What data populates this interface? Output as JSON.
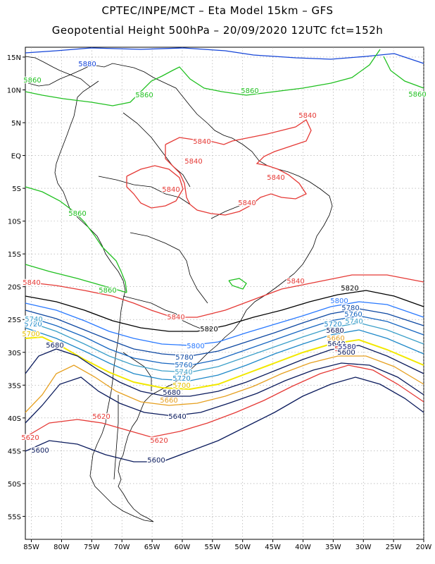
{
  "header": {
    "line1": "CPTEC/INPE/MCT –  Eta Model 15km – GFS",
    "line2": "Geopotential Height 500hPa – 20/09/2020 12UTC fct=152h"
  },
  "axes": {
    "lat_labels": [
      "15N",
      "10N",
      "5N",
      "EQ",
      "5S",
      "10S",
      "15S",
      "20S",
      "25S",
      "30S",
      "35S",
      "40S",
      "45S",
      "50S",
      "55S"
    ],
    "lat_values": [
      15,
      10,
      5,
      0,
      -5,
      -10,
      -15,
      -20,
      -25,
      -30,
      -35,
      -40,
      -45,
      -50,
      -55
    ],
    "lon_labels": [
      "85W",
      "80W",
      "75W",
      "70W",
      "65W",
      "60W",
      "55W",
      "50W",
      "45W",
      "40W",
      "35W",
      "30W",
      "25W",
      "20W"
    ],
    "lon_values": [
      -85,
      -80,
      -75,
      -70,
      -65,
      -60,
      -55,
      -50,
      -45,
      -40,
      -35,
      -30,
      -25,
      -20
    ],
    "lat_range": [
      -58.5,
      16.5
    ],
    "lon_range": [
      -86,
      -20
    ]
  },
  "colors": {
    "c5560": "#1a237e",
    "c5600": "#0a1a5c",
    "c5620": "#e53935",
    "c5660": "#e6a020",
    "c5700": "#f2e800",
    "c5720": "#1e88c8",
    "c5740": "#3b9fc9",
    "c5760": "#1565c0",
    "c5780": "#0d47a1",
    "c5800": "#2979ff",
    "c5820": "#000000",
    "c5840": "#e53935",
    "c5860": "#20c020",
    "c5880": "#1545d8",
    "coast": "#000000",
    "grid": "#a0a0a0"
  },
  "contour_labels": [
    {
      "text": "5880",
      "color": "#1545d8"
    },
    {
      "text": "5860",
      "color": "#20c020"
    },
    {
      "text": "5860",
      "color": "#20c020"
    },
    {
      "text": "5860",
      "color": "#20c020"
    },
    {
      "text": "5860",
      "color": "#20c020"
    },
    {
      "text": "5860",
      "color": "#20c020"
    },
    {
      "text": "5860",
      "color": "#20c020"
    },
    {
      "text": "5840",
      "color": "#e53935"
    },
    {
      "text": "5840",
      "color": "#e53935"
    },
    {
      "text": "5840",
      "color": "#e53935"
    },
    {
      "text": "5840",
      "color": "#e53935"
    },
    {
      "text": "5840",
      "color": "#e53935"
    },
    {
      "text": "5840",
      "color": "#e53935"
    },
    {
      "text": "5840",
      "color": "#e53935"
    },
    {
      "text": "5840",
      "color": "#e53935"
    },
    {
      "text": "5840",
      "color": "#e53935"
    },
    {
      "text": "5820",
      "color": "#000000"
    },
    {
      "text": "5820",
      "color": "#000000"
    },
    {
      "text": "5800",
      "color": "#2979ff"
    },
    {
      "text": "5800",
      "color": "#2979ff"
    },
    {
      "text": "5780",
      "color": "#0d47a1"
    },
    {
      "text": "5780",
      "color": "#0d47a1"
    },
    {
      "text": "5760",
      "color": "#1565c0"
    },
    {
      "text": "5760",
      "color": "#1565c0"
    },
    {
      "text": "5740",
      "color": "#3b9fc9"
    },
    {
      "text": "5740",
      "color": "#3b9fc9"
    },
    {
      "text": "5720",
      "color": "#1e88c8"
    },
    {
      "text": "5720",
      "color": "#1e88c8"
    },
    {
      "text": "5720",
      "color": "#1e88c8"
    },
    {
      "text": "5700",
      "color": "#e6c000"
    },
    {
      "text": "5700",
      "color": "#e6c000"
    },
    {
      "text": "5680",
      "color": "#0a1a5c"
    },
    {
      "text": "5680",
      "color": "#0a1a5c"
    },
    {
      "text": "5680",
      "color": "#0a1a5c"
    },
    {
      "text": "5660",
      "color": "#e6a020"
    },
    {
      "text": "5660",
      "color": "#e6a020"
    },
    {
      "text": "5640",
      "color": "#0a1a5c"
    },
    {
      "text": "5640",
      "color": "#0a1a5c"
    },
    {
      "text": "5620",
      "color": "#e53935"
    },
    {
      "text": "5620",
      "color": "#e53935"
    },
    {
      "text": "5620",
      "color": "#e53935"
    },
    {
      "text": "5620",
      "color": "#e53935"
    },
    {
      "text": "5600",
      "color": "#0a1a5c"
    },
    {
      "text": "5600",
      "color": "#0a1a5c"
    },
    {
      "text": "5600",
      "color": "#0a1a5c"
    },
    {
      "text": "5740",
      "color": "#3b9fc9"
    },
    {
      "text": "5580",
      "color": "#1a237e"
    }
  ]
}
